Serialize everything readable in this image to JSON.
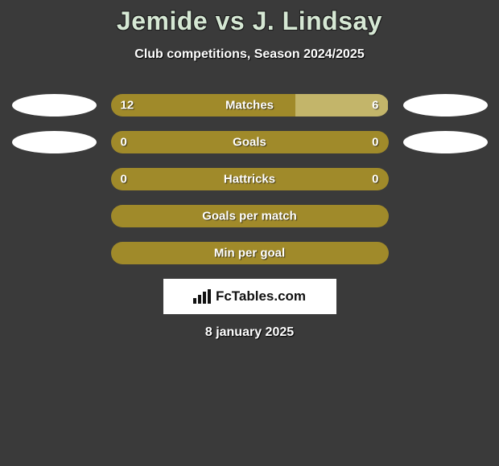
{
  "title": "Jemide vs J. Lindsay",
  "subtitle": "Club competitions, Season 2024/2025",
  "badge_text": "FcTables.com",
  "date": "8 january 2025",
  "colors": {
    "bg": "#3a3a3a",
    "title": "#d6e8d4",
    "bar_primary": "#a08a2a",
    "bar_secondary": "#c3b56a",
    "text": "#ffffff"
  },
  "rows": [
    {
      "label": "Matches",
      "left_val": "12",
      "right_val": "6",
      "left_pct": 66.6,
      "right_pct": 33.4,
      "show_left_ellipse": true,
      "show_right_ellipse": true
    },
    {
      "label": "Goals",
      "left_val": "0",
      "right_val": "0",
      "left_pct": 100,
      "right_pct": 0,
      "show_left_ellipse": true,
      "show_right_ellipse": true
    },
    {
      "label": "Hattricks",
      "left_val": "0",
      "right_val": "0",
      "left_pct": 100,
      "right_pct": 0,
      "show_left_ellipse": false,
      "show_right_ellipse": false
    },
    {
      "label": "Goals per match",
      "left_val": "",
      "right_val": "",
      "left_pct": 100,
      "right_pct": 0,
      "show_left_ellipse": false,
      "show_right_ellipse": false
    },
    {
      "label": "Min per goal",
      "left_val": "",
      "right_val": "",
      "left_pct": 100,
      "right_pct": 0,
      "show_left_ellipse": false,
      "show_right_ellipse": false
    }
  ]
}
